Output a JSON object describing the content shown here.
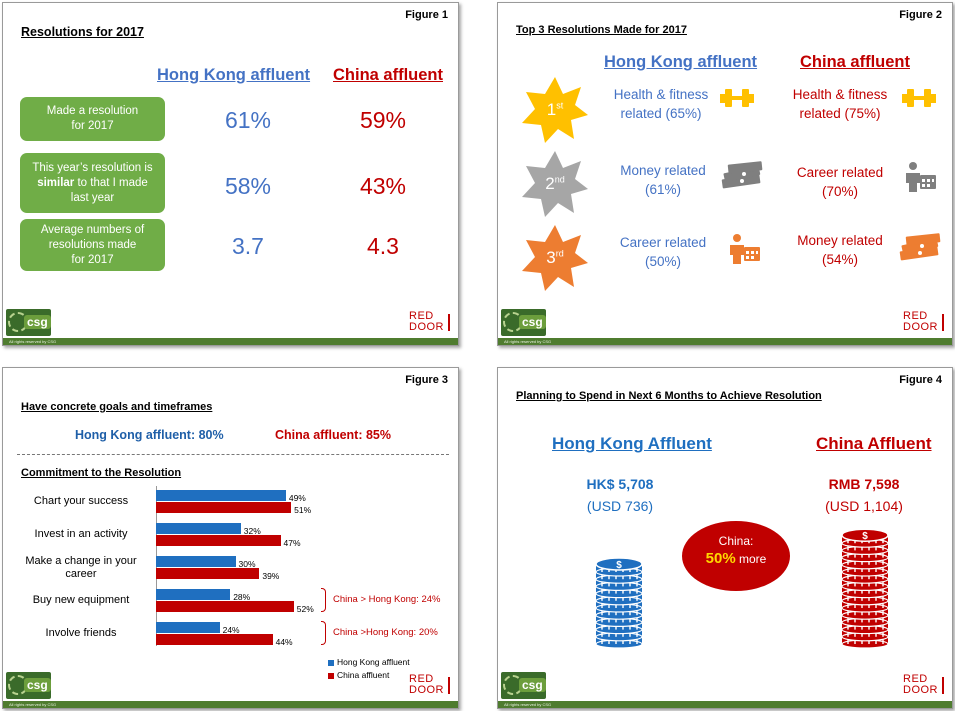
{
  "footer": {
    "copyright": "All rights reserved by CSG",
    "csg_logo": "csg",
    "reddoor_line1": "RED",
    "reddoor_line2": "DOOR"
  },
  "figure1": {
    "label": "Figure 1",
    "title": "Resolutions for 2017",
    "col_hk": "Hong Kong affluent",
    "col_cn": "China affluent",
    "rows": [
      {
        "line1": "Made a resolution",
        "line2_pre": "",
        "line2_bold": "",
        "line2_post": "for 2017",
        "line3": "",
        "hk": "61%",
        "cn": "59%"
      },
      {
        "line1": "This year’s resolution is",
        "line2_pre": "",
        "line2_bold": "similar",
        "line2_post": " to that I made",
        "line3": "last year",
        "hk": "58%",
        "cn": "43%"
      },
      {
        "line1": "Average numbers of",
        "line2_pre": "resolutions made",
        "line2_bold": "",
        "line2_post": "",
        "line3": "for 2017",
        "hk": "3.7",
        "cn": "4.3"
      }
    ]
  },
  "figure2": {
    "label": "Figure 2",
    "title": "Top 3 Resolutions Made for 2017",
    "col_hk": "Hong Kong affluent",
    "col_cn": "China affluent",
    "ranks": [
      {
        "num": "1",
        "suffix": "st",
        "color": "#ffc000",
        "hk_l1": "Health & fitness",
        "hk_l2": "related (65%)",
        "hk_icon": "dumbbell-icon",
        "cn_l1": "Health & fitness",
        "cn_l2": "related (75%)",
        "cn_icon": "dumbbell-icon"
      },
      {
        "num": "2",
        "suffix": "nd",
        "color": "#a6a6a6",
        "hk_l1": "Money related",
        "hk_l2": "(61%)",
        "hk_icon": "money-stack-icon",
        "cn_l1": "Career related",
        "cn_l2": "(70%)",
        "cn_icon": "career-icon"
      },
      {
        "num": "3",
        "suffix": "rd",
        "color": "#ed7d31",
        "hk_l1": "Career related",
        "hk_l2": "(50%)",
        "hk_icon": "career-icon",
        "cn_l1": "Money related",
        "cn_l2": "(54%)",
        "cn_icon": "money-stack-icon"
      }
    ]
  },
  "figure3": {
    "label": "Figure 3",
    "title1": "Have concrete goals and timeframes",
    "goal_hk": "Hong Kong affluent: 80%",
    "goal_cn": "China affluent: 85%",
    "title2": "Commitment to the Resolution",
    "chart_data": {
      "type": "bar",
      "orientation": "horizontal",
      "categories": [
        "Chart your success",
        "Invest in an activity",
        "Make a change in your career",
        "Buy new equipment",
        "Involve friends"
      ],
      "category_lines": [
        [
          "Chart your success"
        ],
        [
          "Invest in an activity"
        ],
        [
          "Make a change in your",
          "career"
        ],
        [
          "Buy new equipment"
        ],
        [
          "Involve friends"
        ]
      ],
      "series": [
        {
          "name": "Hong Kong affluent",
          "color": "#1f6fc0",
          "values": [
            49,
            32,
            30,
            28,
            24
          ],
          "labels": [
            "49%",
            "32%",
            "30%",
            "28%",
            "24%"
          ]
        },
        {
          "name": "China affluent",
          "color": "#c00000",
          "values": [
            51,
            47,
            39,
            52,
            44
          ],
          "labels": [
            "51%",
            "47%",
            "39%",
            "52%",
            "44%"
          ]
        }
      ],
      "annotations": [
        {
          "category_index": 3,
          "text": "China > Hong Kong: 24%"
        },
        {
          "category_index": 4,
          "text": "China >Hong Kong: 20%"
        }
      ],
      "legend_position": "bottom-right"
    }
  },
  "figure4": {
    "label": "Figure 4",
    "title": "Planning to Spend in Next 6 Months to Achieve Resolution",
    "hk_title": "Hong Kong Affluent",
    "cn_title": "China Affluent",
    "hk_amount": "HK$ 5,708",
    "hk_usd": "(USD 736)",
    "cn_amount": "RMB 7,598",
    "cn_usd": "(USD 1,104)",
    "callout_line1": "China:",
    "callout_pct": "50%",
    "callout_more": " more",
    "hk_coin_color": "#1f6fc0",
    "cn_coin_color": "#c00000"
  }
}
